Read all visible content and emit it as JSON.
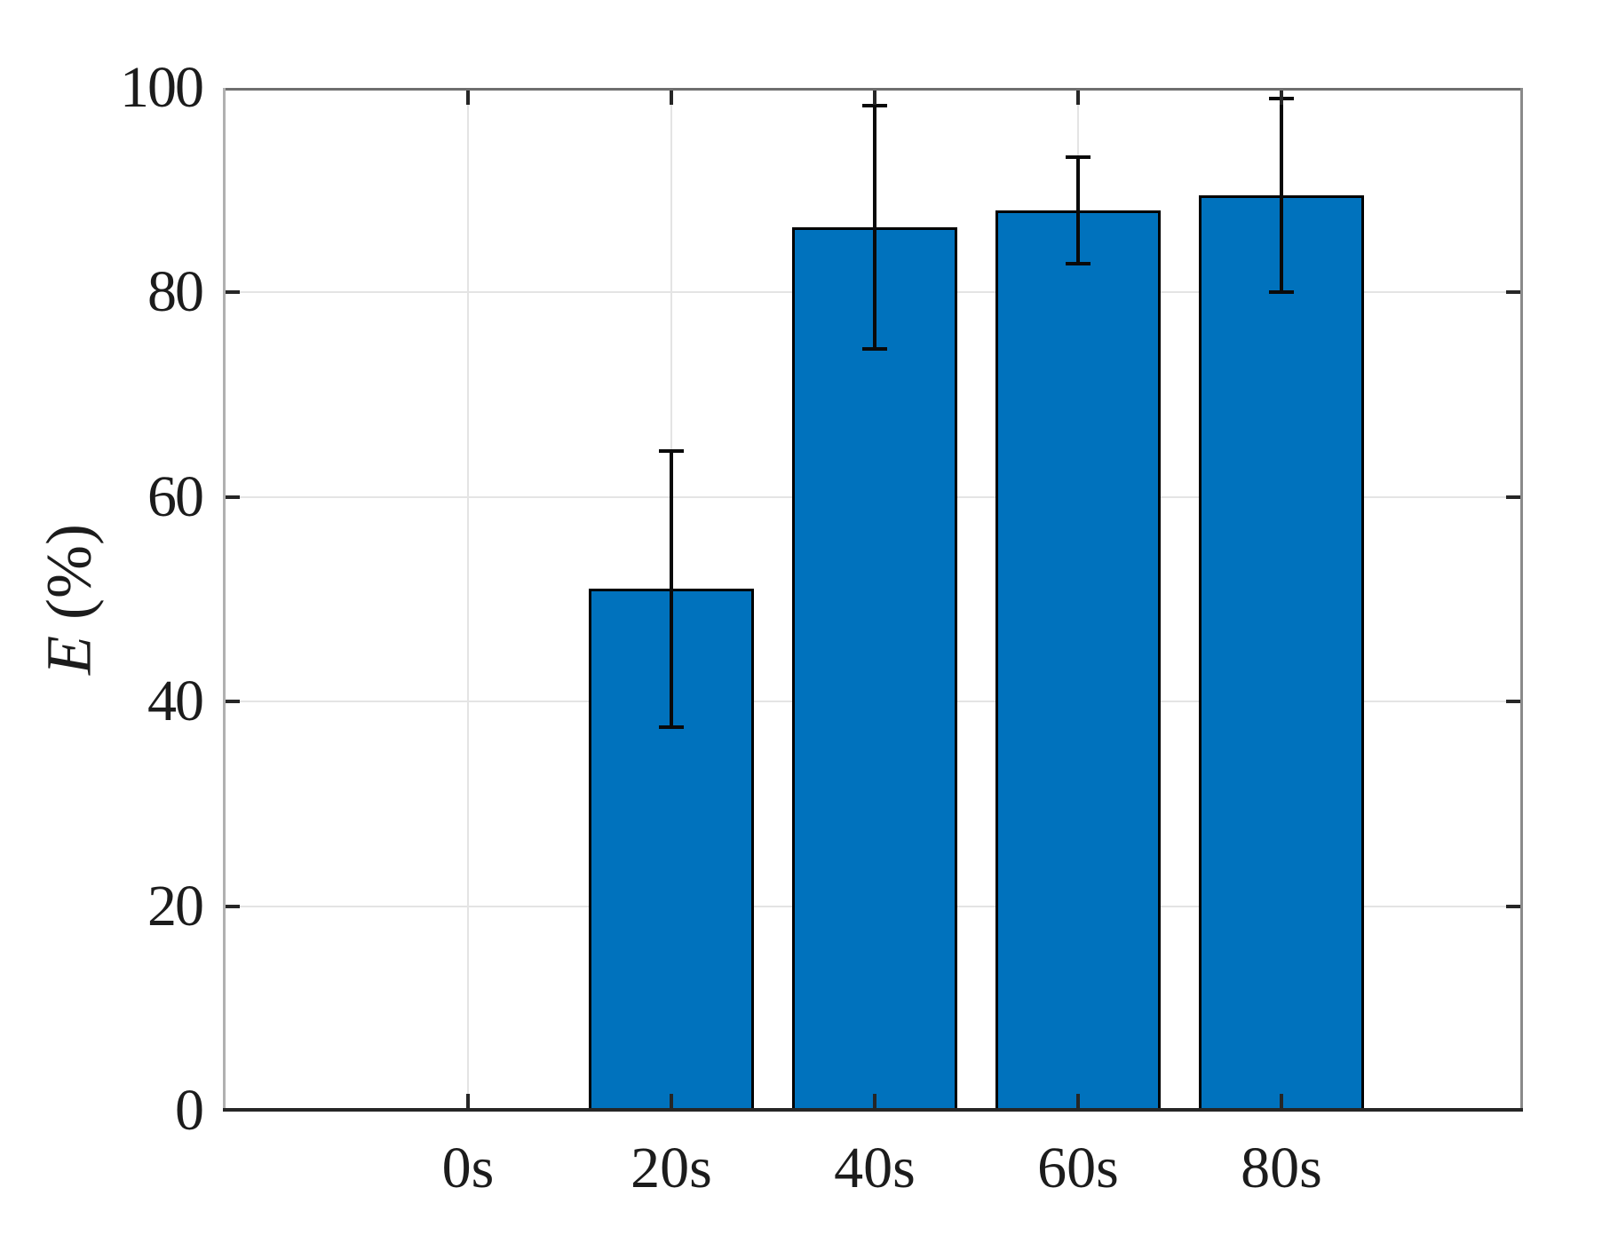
{
  "chart_data": {
    "type": "bar",
    "title": "",
    "xlabel": "",
    "ylabel": "E (%)",
    "ylabel_var": "E",
    "ylabel_unit": " (%)",
    "categories": [
      "0s",
      "20s",
      "40s",
      "60s",
      "80s"
    ],
    "values": [
      0,
      51,
      86.4,
      88,
      89.5
    ],
    "errors_plus": [
      0,
      13.5,
      11.9,
      5.2,
      9.5
    ],
    "errors_minus": [
      0,
      13.5,
      11.9,
      5.2,
      9.5
    ],
    "yticks": [
      0,
      20,
      40,
      60,
      80,
      100
    ],
    "ylim": [
      0,
      100
    ],
    "grid": true,
    "legend": "none",
    "bar_width_fraction": 0.8,
    "colors": {
      "bar_fill": "#0072BD",
      "bar_edge": "#000000",
      "error_bar": "#0a0a0a",
      "grid_line": "#e4e4e4",
      "axis_box_top": "#6f6f6f",
      "axis_box_right": "#8a8a8a",
      "axis_box_left": "#b0b0b0",
      "axis_bottom": "#262626",
      "tick_mark": "#262626",
      "text": "#1c1c1c",
      "background": "#ffffff"
    }
  }
}
